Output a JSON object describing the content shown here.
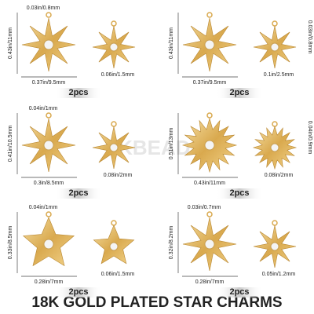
{
  "title": "18K GOLD PLATED STAR CHARMS",
  "watermark": "KBEADS",
  "panels": [
    {
      "height": "0.43in/11mm",
      "width": "0.37in/9.5mm",
      "loop": "0.03in/0.8mm",
      "detail": "0.06in/1.5mm",
      "count": "2pcs"
    },
    {
      "height": "0.43in/11mm",
      "width": "0.37in/9.5mm",
      "loop": "0.03in/0.8mm",
      "detail": "0.1in/2.5mm",
      "count": "2pcs"
    },
    {
      "height": "0.41in/10.5mm",
      "width": "0.3in/8.5mm",
      "loop": "0.04in/1mm",
      "detail": "0.08in/2mm",
      "count": "2pcs"
    },
    {
      "height": "0.51in/13mm",
      "width": "0.43in/11mm",
      "loop": "0.04in/0.9mm",
      "detail": "0.08in/2mm",
      "count": "2pcs"
    },
    {
      "height": "0.33in/8.5mm",
      "width": "0.28in/7mm",
      "loop": "0.04in/1mm",
      "detail": "0.06in/1.5mm",
      "count": "2pcs"
    },
    {
      "height": "0.32in/8.2mm",
      "width": "0.28in/7mm",
      "loop": "0.03in/0.7mm",
      "detail": "0.05in/1.2mm",
      "count": "2pcs"
    }
  ]
}
